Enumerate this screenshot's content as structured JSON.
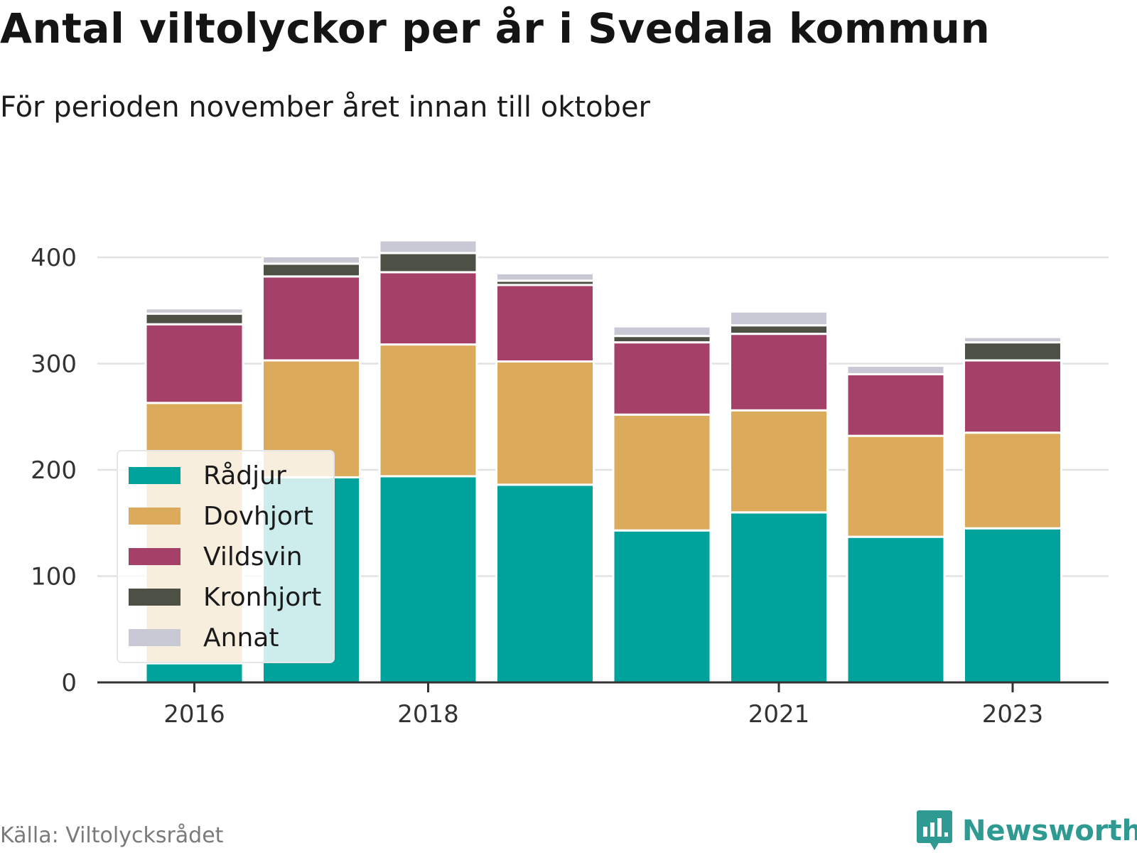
{
  "header": {
    "title": "Antal viltolyckor per år i Svedala kommun",
    "subtitle": "För perioden november året innan till oktober"
  },
  "footer": {
    "source": "Källa: Viltolycksrådet",
    "brand": "Newsworthy",
    "brand_color": "#2f9a92"
  },
  "chart_data": {
    "type": "bar",
    "stacked": true,
    "categories": [
      "2016",
      "2017",
      "2018",
      "2019",
      "2020",
      "2021",
      "2022",
      "2023"
    ],
    "x_tick_labels": [
      "2016",
      "2018",
      "2021",
      "2023"
    ],
    "y_ticks": [
      0,
      100,
      200,
      300,
      400
    ],
    "ylim": [
      0,
      420
    ],
    "grid": true,
    "legend_position": "bottom-left",
    "series": [
      {
        "name": "Rådjur",
        "color": "#00a39b",
        "values": [
          18,
          193,
          194,
          186,
          143,
          160,
          137,
          145
        ]
      },
      {
        "name": "Dovhjort",
        "color": "#dbab5b",
        "values": [
          245,
          110,
          124,
          116,
          109,
          96,
          95,
          90
        ]
      },
      {
        "name": "Vildsvin",
        "color": "#a54068",
        "values": [
          74,
          79,
          68,
          72,
          68,
          72,
          58,
          68
        ]
      },
      {
        "name": "Kronhjort",
        "color": "#4d5145",
        "values": [
          10,
          12,
          18,
          4,
          6,
          8,
          0,
          17
        ]
      },
      {
        "name": "Annat",
        "color": "#c9c9d6",
        "values": [
          5,
          7,
          12,
          7,
          9,
          13,
          8,
          5
        ]
      }
    ]
  }
}
